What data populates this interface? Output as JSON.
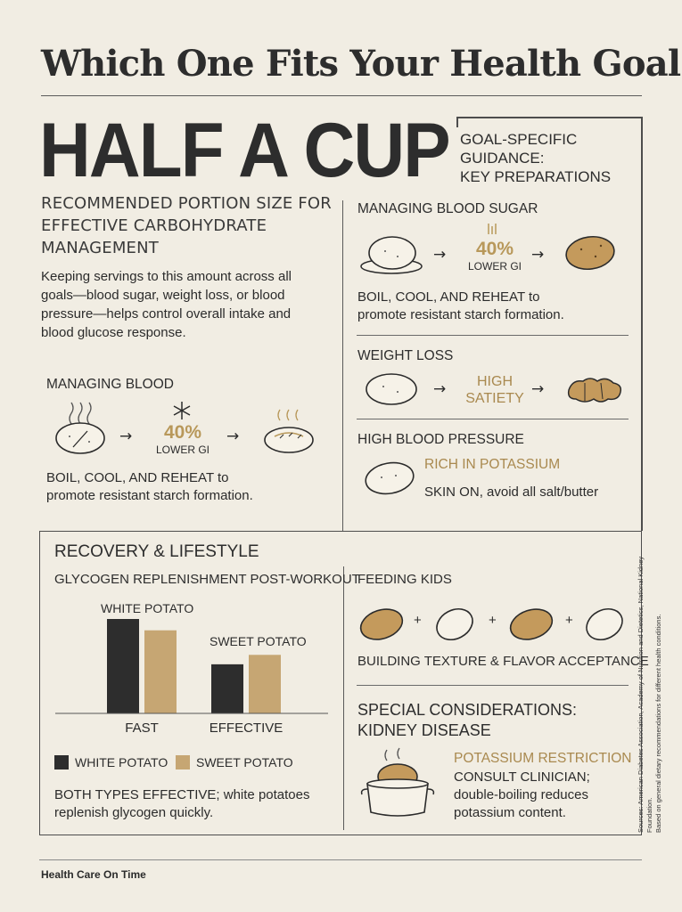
{
  "title": "Which One Fits Your Health Goal",
  "hero": {
    "headline": "HALF A CUP",
    "subheading": "RECOMMENDED PORTION SIZE FOR EFFECTIVE CARBOHYDRATE MANAGEMENT",
    "body": "Keeping servings to this amount across all goals—blood sugar, weight loss, or blood pressure—helps control overall intake and blood glucose response."
  },
  "left_blood": {
    "heading": "MANAGING BLOOD",
    "percent": "40%",
    "lower_gi": "LOWER GI",
    "note_bold": "BOIL, COOL, AND REHEAT",
    "note_rest_1": " to",
    "note_line2": "promote resistant starch formation."
  },
  "guidance": {
    "title_line1": "GOAL-SPECIFIC",
    "title_line2": "GUIDANCE:",
    "title_line3": "KEY PREPARATIONS",
    "blood_sugar": {
      "heading": "MANAGING BLOOD SUGAR",
      "percent": "40%",
      "lower_gi": "LOWER GI",
      "note_bold": "BOIL, COOL, AND REHEAT",
      "note_rest_1": " to",
      "note_line2": "promote resistant starch formation."
    },
    "weight_loss": {
      "heading": "WEIGHT LOSS",
      "satiety_1": "HIGH",
      "satiety_2": "SATIETY"
    },
    "blood_pressure": {
      "heading": "HIGH BLOOD PRESSURE",
      "highlight": "RICH IN POTASSIUM",
      "note_bold": "SKIN ON",
      "note_rest": ", avoid all salt/butter"
    }
  },
  "recovery": {
    "heading": "RECOVERY & LIFESTYLE",
    "chart_title": "GLYCOGEN REPLENISHMENT POST-WORKOUT",
    "bar_label_white": "WHITE POTATO",
    "bar_label_sweet": "SWEET POTATO",
    "legend_white": "WHITE POTATO",
    "legend_sweet": "SWEET POTATO",
    "note_bold": "BOTH TYPES EFFECTIVE",
    "note_rest_1": "; white potatoes",
    "note_line2": "replenish glycogen quickly."
  },
  "chart_data": {
    "type": "bar",
    "categories": [
      "FAST",
      "EFFECTIVE"
    ],
    "series": [
      {
        "name": "WHITE POTATO",
        "values": [
          1.0,
          0.52
        ]
      },
      {
        "name": "SWEET POTATO",
        "values": [
          0.88,
          0.62
        ]
      }
    ],
    "ylim": [
      0,
      1
    ],
    "colors": [
      "#2d2d2d",
      "#c6a673"
    ],
    "legend": "bottom",
    "grid": false
  },
  "kids": {
    "heading": "FEEDING KIDS",
    "plus": "+",
    "caption": "BUILDING TEXTURE & FLAVOR ACCEPTANCE"
  },
  "kidney": {
    "heading_1": "SPECIAL CONSIDERATIONS:",
    "heading_2": "KIDNEY DISEASE",
    "highlight": "POTASSIUM RESTRICTION",
    "note_line1": "CONSULT CLINICIAN;",
    "note_line2": "double-boiling reduces",
    "note_line3": "potassium content."
  },
  "sources": {
    "line1": "Sources: American Diabetes Association, Academy of Nutrition and Dietetics, National Kidney Foundation.",
    "line2": "Based on general dietary recommendations for different health conditions."
  },
  "footer": "Health Care On Time",
  "colors": {
    "background": "#f1ede3",
    "accent_gold": "#b8985a",
    "potato_brown": "#c49a5c",
    "ink": "#2d2d2d"
  }
}
